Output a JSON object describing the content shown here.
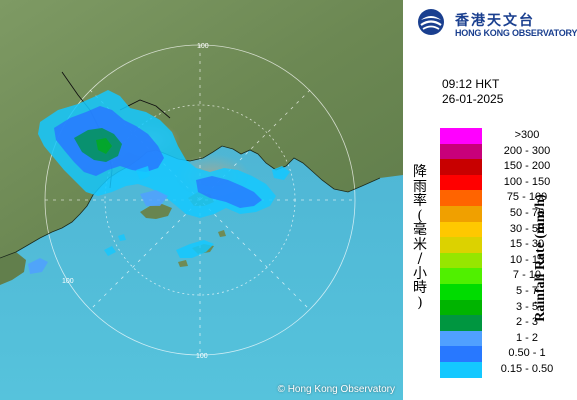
{
  "logo": {
    "name_zh": "香港天文台",
    "name_en": "HONG KONG OBSERVATORY",
    "brand_color": "#1a3f8f"
  },
  "timestamp": {
    "time": "09:12 HKT",
    "date": "26-01-2025"
  },
  "legend": {
    "title_zh": "降雨率(毫米/小時)",
    "title_en": "Rainfall Rate (mm/h)",
    "rows": [
      {
        "label": ">300",
        "color": "#ff00ff"
      },
      {
        "label": "200 - 300",
        "color": "#c8007a"
      },
      {
        "label": "150 - 200",
        "color": "#c80000"
      },
      {
        "label": "100 - 150",
        "color": "#ff0000"
      },
      {
        "label": "75 - 100",
        "color": "#ff6400"
      },
      {
        "label": "50 - 75",
        "color": "#f0a000"
      },
      {
        "label": "30 - 50",
        "color": "#ffc800"
      },
      {
        "label": "15 - 30",
        "color": "#dcd200"
      },
      {
        "label": "10 - 15",
        "color": "#96e600"
      },
      {
        "label": "7 - 10",
        "color": "#50f000"
      },
      {
        "label": "5 - 7",
        "color": "#00dc00"
      },
      {
        "label": "3 - 5",
        "color": "#00b400"
      },
      {
        "label": "2 - 3",
        "color": "#009640"
      },
      {
        "label": "1 - 2",
        "color": "#50a0ff"
      },
      {
        "label": "0.50 - 1",
        "color": "#2878ff"
      },
      {
        "label": "0.15 - 0.50",
        "color": "#14c8ff"
      }
    ]
  },
  "map": {
    "range_ring_labels": [
      "100",
      "100",
      "100"
    ],
    "copyright": "© Hong Kong Observatory",
    "sea_color": "#4fb8d4",
    "land_color": "#6e8a55"
  }
}
